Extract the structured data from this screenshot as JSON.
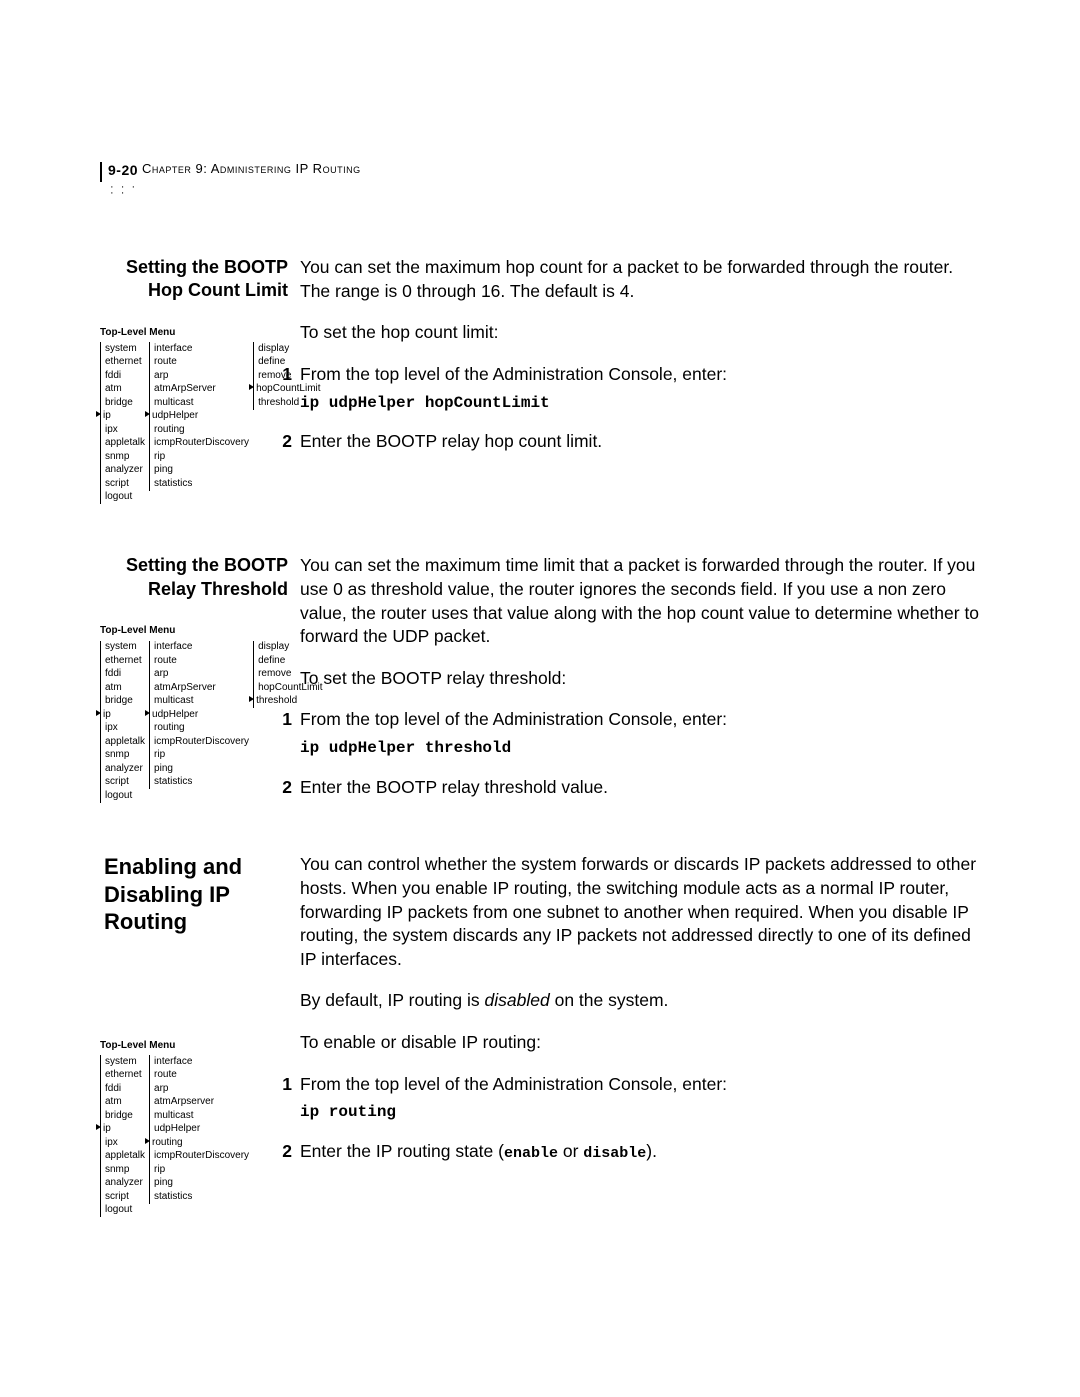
{
  "header": {
    "page_num": "9-20",
    "chapter": "Chapter 9: Administering IP Routing",
    "dots_row1": "· · · · ·",
    "dots_row2": "· · · · ·"
  },
  "section1": {
    "title": "Setting the BOOTP Hop Count Limit",
    "intro": "You can set the maximum hop count for a packet to be forwarded through the router. The range is 0 through 16. The default is 4.",
    "lead": "To set the hop count limit:",
    "step1": "From the top level of the Administration Console, enter:",
    "cmd": "ip udpHelper hopCountLimit",
    "step2": "Enter the BOOTP relay hop count limit.",
    "menu": {
      "title": "Top-Level Menu",
      "col1": [
        "system",
        "ethernet",
        "fddi",
        "atm",
        "bridge",
        "ip",
        "ipx",
        "appletalk",
        "snmp",
        "analyzer",
        "script",
        "logout"
      ],
      "col1_marked": "ip",
      "col2": [
        "interface",
        "route",
        "arp",
        "atmArpServer",
        "multicast",
        "udpHelper",
        "routing",
        "icmpRouterDiscovery",
        "rip",
        "ping",
        "statistics"
      ],
      "col2_marked": "udpHelper",
      "col3": [
        "display",
        "define",
        "remove",
        "hopCountLimit",
        "threshold"
      ],
      "col3_marked": "hopCountLimit"
    }
  },
  "section2": {
    "title": "Setting the BOOTP Relay Threshold",
    "intro": "You can set the maximum time limit that a packet is forwarded through the router. If you use 0 as threshold value, the router ignores the seconds field. If you use a non zero value, the router uses that value along with the hop count value to determine whether to forward the UDP packet.",
    "lead": "To set the BOOTP relay threshold:",
    "step1": "From the top level of the Administration Console, enter:",
    "cmd": "ip udpHelper threshold",
    "step2": "Enter the BOOTP relay threshold value.",
    "menu": {
      "title": "Top-Level Menu",
      "col1": [
        "system",
        "ethernet",
        "fddi",
        "atm",
        "bridge",
        "ip",
        "ipx",
        "appletalk",
        "snmp",
        "analyzer",
        "script",
        "logout"
      ],
      "col1_marked": "ip",
      "col2": [
        "interface",
        "route",
        "arp",
        "atmArpServer",
        "multicast",
        "udpHelper",
        "routing",
        "icmpRouterDiscovery",
        "rip",
        "ping",
        "statistics"
      ],
      "col2_marked": "udpHelper",
      "col3": [
        "display",
        "define",
        "remove",
        "hopCountLimit",
        "threshold"
      ],
      "col3_marked": "threshold"
    }
  },
  "section3": {
    "title": "Enabling and Disabling IP Routing",
    "intro": "You can control whether the system forwards or discards IP packets addressed to other hosts. When you enable IP routing, the switching module acts as a normal IP router, forwarding IP packets from one subnet to another when required. When you disable IP routing, the system discards any IP packets not addressed directly to one of its defined IP interfaces.",
    "default_pre": "By default, IP routing is ",
    "default_em": "disabled",
    "default_post": " on the system.",
    "lead": "To enable or disable IP routing:",
    "step1": "From the top level of the Administration Console, enter:",
    "cmd": "ip routing",
    "step2_pre": "Enter the IP routing state (",
    "step2_a": "enable",
    "step2_mid": " or ",
    "step2_b": "disable",
    "step2_post": ").",
    "menu": {
      "title": "Top-Level Menu",
      "col1": [
        "system",
        "ethernet",
        "fddi",
        "atm",
        "bridge",
        "ip",
        "ipx",
        "appletalk",
        "snmp",
        "analyzer",
        "script",
        "logout"
      ],
      "col1_marked": "ip",
      "col2": [
        "interface",
        "route",
        "arp",
        "atmArpserver",
        "multicast",
        "udpHelper",
        "routing",
        "icmpRouterDiscovery",
        "rip",
        "ping",
        "statistics"
      ],
      "col2_marked": "routing"
    }
  },
  "labels": {
    "n1": "1",
    "n2": "2"
  }
}
